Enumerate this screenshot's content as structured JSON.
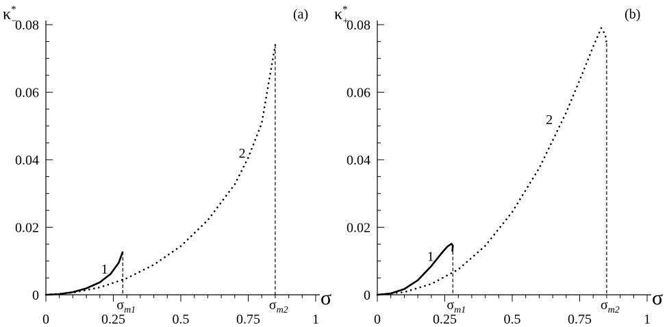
{
  "chart_data": [
    {
      "type": "line",
      "panel_label": "(a)",
      "ylabel": {
        "base": "κ",
        "sup": "*",
        "sub": "−"
      },
      "xlabel": "σ",
      "xlim": [
        0,
        1
      ],
      "ylim": [
        0,
        0.08
      ],
      "xticks": [
        "0",
        "0.25",
        "0.5",
        "0.75",
        "1"
      ],
      "yticks": [
        "0",
        "0.02",
        "0.04",
        "0.06",
        "0.08"
      ],
      "series": [
        {
          "name": "1",
          "style": "solid",
          "x": [
            0,
            0.05,
            0.1,
            0.15,
            0.2,
            0.24,
            0.27,
            0.285
          ],
          "y": [
            0,
            0.0002,
            0.0008,
            0.0019,
            0.0037,
            0.0062,
            0.0095,
            0.0128
          ]
        },
        {
          "name": "2",
          "style": "dotted",
          "x": [
            0,
            0.1,
            0.2,
            0.3,
            0.4,
            0.5,
            0.6,
            0.7,
            0.75,
            0.8,
            0.85
          ],
          "y": [
            0,
            0.0006,
            0.0022,
            0.0049,
            0.0089,
            0.0144,
            0.0221,
            0.0327,
            0.0406,
            0.0508,
            0.074
          ]
        }
      ],
      "markers": [
        {
          "label_base": "σ",
          "label_sub": "m1",
          "x": 0.285,
          "ytop": 0.0128
        },
        {
          "label_base": "σ",
          "label_sub": "m2",
          "x": 0.85,
          "ytop": 0.074
        }
      ],
      "curve_labels": [
        {
          "text": "1",
          "x": 0.22,
          "y": 0.0077
        },
        {
          "text": "2",
          "x": 0.73,
          "y": 0.042
        }
      ]
    },
    {
      "type": "line",
      "panel_label": "(b)",
      "ylabel": {
        "base": "κ",
        "sup": "*",
        "sub": "+"
      },
      "xlabel": "σ",
      "xlim": [
        0,
        1
      ],
      "ylim": [
        0,
        0.08
      ],
      "xticks": [
        "0",
        "0.25",
        "0.5",
        "0.75",
        "1"
      ],
      "yticks": [
        "0",
        "0.02",
        "0.04",
        "0.06",
        "0.08"
      ],
      "series": [
        {
          "name": "1",
          "style": "solid",
          "x": [
            0,
            0.05,
            0.1,
            0.15,
            0.2,
            0.24,
            0.26,
            0.275,
            0.28,
            0.278
          ],
          "y": [
            0,
            0.0004,
            0.0017,
            0.0043,
            0.0085,
            0.0125,
            0.0143,
            0.0151,
            0.0145,
            0.0128
          ]
        },
        {
          "name": "2",
          "style": "dotted",
          "x": [
            0,
            0.1,
            0.2,
            0.3,
            0.4,
            0.5,
            0.6,
            0.7,
            0.76,
            0.8,
            0.83,
            0.845,
            0.85
          ],
          "y": [
            0,
            0.0008,
            0.0032,
            0.0075,
            0.0145,
            0.0245,
            0.0375,
            0.054,
            0.0655,
            0.0735,
            0.079,
            0.077,
            0.0745
          ]
        }
      ],
      "markers": [
        {
          "label_base": "σ",
          "label_sub": "m1",
          "x": 0.28,
          "ytop": 0.0145
        },
        {
          "label_base": "σ",
          "label_sub": "m2",
          "x": 0.85,
          "ytop": 0.0745
        }
      ],
      "curve_labels": [
        {
          "text": "1",
          "x": 0.2,
          "y": 0.0115
        },
        {
          "text": "2",
          "x": 0.64,
          "y": 0.052
        }
      ]
    }
  ]
}
